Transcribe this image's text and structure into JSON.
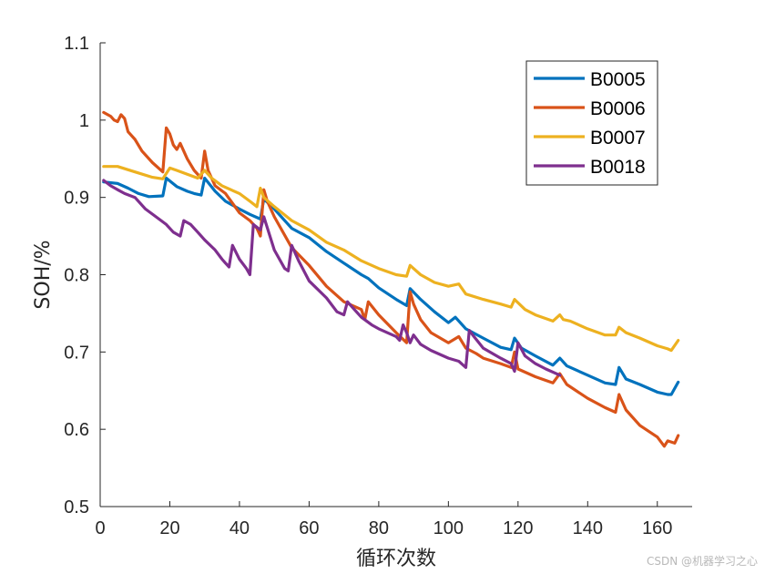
{
  "watermark": "CSDN @机器学习之心",
  "chart_data": {
    "type": "line",
    "title": "",
    "xlabel": "循环次数",
    "ylabel": "SOH/%",
    "xlim": [
      0,
      170
    ],
    "ylim": [
      0.5,
      1.1
    ],
    "xticks": [
      0,
      20,
      40,
      60,
      80,
      100,
      120,
      140,
      160
    ],
    "yticks": [
      0.5,
      0.6,
      0.7,
      0.8,
      0.9,
      1,
      1.1
    ],
    "ytick_labels": [
      "0.5",
      "0.6",
      "0.7",
      "0.8",
      "0.9",
      "1",
      "1.1"
    ],
    "legend_position": "top-right",
    "series": [
      {
        "name": "B0005",
        "color": "#0072BD",
        "x": [
          1,
          5,
          8,
          11,
          14,
          18,
          19,
          22,
          25,
          27,
          29,
          30,
          33,
          36,
          40,
          43,
          46,
          47,
          50,
          55,
          60,
          65,
          70,
          75,
          77,
          80,
          85,
          88,
          89,
          92,
          96,
          100,
          102,
          105,
          110,
          115,
          118,
          119,
          121,
          125,
          130,
          132,
          134,
          140,
          145,
          148,
          149,
          151,
          155,
          160,
          163,
          164,
          166
        ],
        "y": [
          0.92,
          0.918,
          0.912,
          0.905,
          0.901,
          0.902,
          0.925,
          0.914,
          0.908,
          0.905,
          0.903,
          0.925,
          0.908,
          0.895,
          0.885,
          0.878,
          0.872,
          0.898,
          0.885,
          0.86,
          0.848,
          0.83,
          0.815,
          0.8,
          0.795,
          0.783,
          0.768,
          0.76,
          0.782,
          0.768,
          0.752,
          0.738,
          0.745,
          0.73,
          0.718,
          0.706,
          0.703,
          0.718,
          0.705,
          0.695,
          0.683,
          0.692,
          0.682,
          0.67,
          0.66,
          0.658,
          0.68,
          0.665,
          0.658,
          0.648,
          0.645,
          0.645,
          0.661
        ]
      },
      {
        "name": "B0006",
        "color": "#D95319",
        "x": [
          1,
          3,
          4,
          5,
          6,
          7,
          8,
          10,
          12,
          15,
          18,
          19,
          20,
          21,
          22,
          23,
          25,
          27,
          29,
          30,
          31,
          33,
          36,
          40,
          43,
          45,
          46,
          47,
          48,
          50,
          55,
          60,
          65,
          70,
          75,
          76,
          77,
          80,
          85,
          88,
          89,
          90,
          92,
          95,
          100,
          103,
          105,
          108,
          110,
          115,
          118,
          119,
          120,
          125,
          130,
          132,
          134,
          140,
          145,
          148,
          149,
          151,
          155,
          160,
          162,
          163,
          165,
          166
        ],
        "y": [
          1.01,
          1.005,
          1.0,
          0.998,
          1.007,
          1.002,
          0.985,
          0.975,
          0.96,
          0.945,
          0.933,
          0.99,
          0.982,
          0.968,
          0.962,
          0.97,
          0.95,
          0.935,
          0.925,
          0.96,
          0.935,
          0.915,
          0.905,
          0.88,
          0.87,
          0.86,
          0.85,
          0.91,
          0.895,
          0.875,
          0.835,
          0.812,
          0.785,
          0.765,
          0.755,
          0.742,
          0.765,
          0.748,
          0.725,
          0.712,
          0.778,
          0.762,
          0.742,
          0.725,
          0.712,
          0.72,
          0.705,
          0.698,
          0.692,
          0.685,
          0.68,
          0.7,
          0.678,
          0.668,
          0.66,
          0.672,
          0.658,
          0.64,
          0.628,
          0.622,
          0.645,
          0.625,
          0.605,
          0.59,
          0.578,
          0.585,
          0.582,
          0.592
        ]
      },
      {
        "name": "B0007",
        "color": "#EDB120",
        "x": [
          1,
          5,
          10,
          15,
          18,
          20,
          22,
          25,
          28,
          30,
          32,
          35,
          40,
          43,
          45,
          46,
          47,
          50,
          55,
          60,
          65,
          70,
          75,
          80,
          85,
          88,
          89,
          92,
          96,
          100,
          103,
          105,
          110,
          115,
          118,
          119,
          122,
          125,
          130,
          132,
          133,
          135,
          140,
          145,
          148,
          149,
          151,
          155,
          160,
          163,
          164,
          166
        ],
        "y": [
          0.94,
          0.94,
          0.933,
          0.926,
          0.924,
          0.938,
          0.935,
          0.93,
          0.925,
          0.935,
          0.925,
          0.915,
          0.905,
          0.895,
          0.888,
          0.912,
          0.9,
          0.888,
          0.87,
          0.858,
          0.842,
          0.832,
          0.818,
          0.808,
          0.8,
          0.798,
          0.812,
          0.8,
          0.79,
          0.785,
          0.788,
          0.775,
          0.768,
          0.762,
          0.758,
          0.768,
          0.755,
          0.748,
          0.74,
          0.748,
          0.742,
          0.74,
          0.73,
          0.722,
          0.722,
          0.732,
          0.725,
          0.718,
          0.708,
          0.704,
          0.702,
          0.715
        ]
      },
      {
        "name": "B0018",
        "color": "#7E2F8E",
        "x": [
          1,
          3,
          5,
          7,
          10,
          13,
          16,
          19,
          21,
          23,
          24,
          26,
          28,
          30,
          33,
          35,
          36,
          37,
          38,
          40,
          42,
          43,
          44,
          46,
          47,
          50,
          53,
          54,
          55,
          57,
          60,
          65,
          68,
          70,
          71,
          73,
          75,
          78,
          80,
          85,
          86,
          87,
          88,
          89,
          90,
          92,
          95,
          100,
          103,
          105,
          106,
          107,
          110,
          115,
          118,
          119,
          120,
          122,
          125,
          128,
          132
        ],
        "y": [
          0.922,
          0.915,
          0.91,
          0.905,
          0.9,
          0.885,
          0.875,
          0.865,
          0.855,
          0.85,
          0.87,
          0.865,
          0.855,
          0.845,
          0.832,
          0.82,
          0.815,
          0.81,
          0.838,
          0.82,
          0.808,
          0.8,
          0.865,
          0.858,
          0.875,
          0.832,
          0.808,
          0.805,
          0.838,
          0.818,
          0.792,
          0.77,
          0.752,
          0.748,
          0.765,
          0.755,
          0.745,
          0.735,
          0.73,
          0.72,
          0.715,
          0.735,
          0.725,
          0.712,
          0.722,
          0.71,
          0.702,
          0.692,
          0.688,
          0.68,
          0.728,
          0.722,
          0.705,
          0.692,
          0.685,
          0.675,
          0.712,
          0.695,
          0.685,
          0.678,
          0.67
        ]
      }
    ]
  }
}
